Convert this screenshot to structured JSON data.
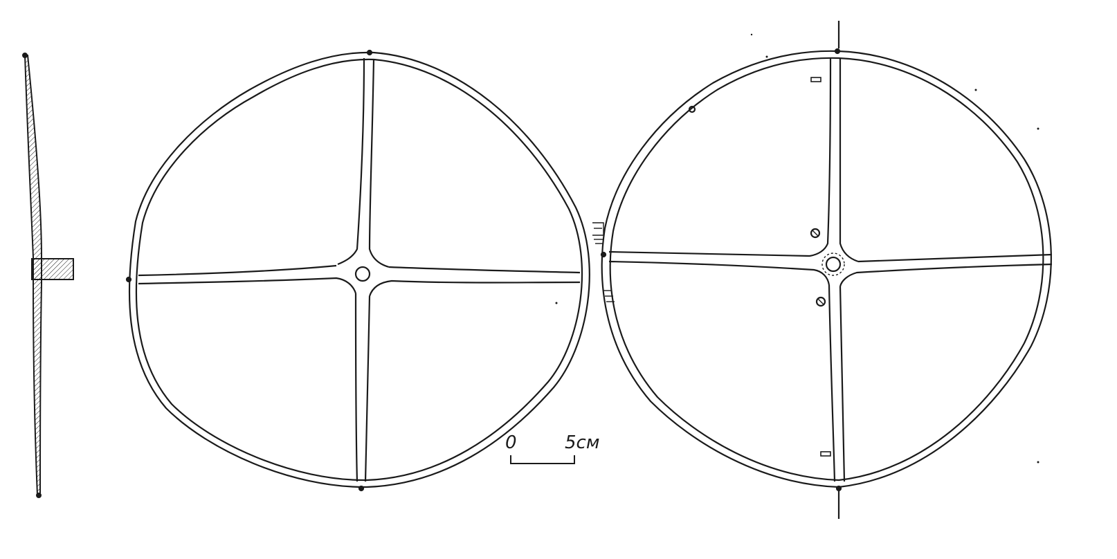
{
  "figure": {
    "ink_color": "#1a1a1a",
    "background": "#ffffff",
    "objects": [
      {
        "name": "shield-section-profile",
        "kind": "cross-section"
      },
      {
        "name": "shield-front-view",
        "kind": "plan",
        "boss_hole": true
      },
      {
        "name": "shield-back-view",
        "kind": "plan",
        "boss_hole": true,
        "rivets": 3,
        "clamps": 2
      }
    ],
    "scale_bar": {
      "start_label": "0",
      "end_label": "5см"
    }
  }
}
